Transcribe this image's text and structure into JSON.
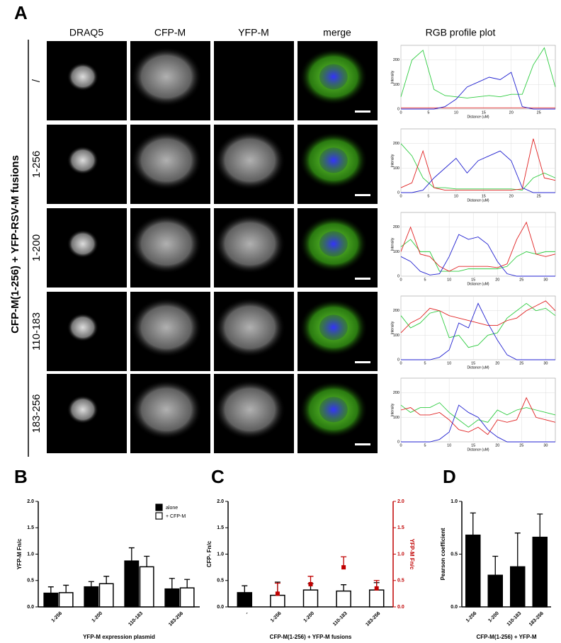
{
  "panel_a": {
    "label": "A",
    "side_label": "CFP-M(1-256) + YFP-RSV-M fusions",
    "columns": [
      "DRAQ5",
      "CFP-M",
      "YFP-M",
      "merge",
      "RGB profile plot"
    ],
    "rows": [
      "/",
      "1-256",
      "1-200",
      "110-183",
      "183-256"
    ]
  },
  "chart_data": [
    {
      "type": "line",
      "xlabel": "Distance (uM)",
      "ylabel": "Intensity",
      "xlim": [
        0,
        28
      ],
      "ylim": [
        0,
        260
      ],
      "xticks": [
        0,
        5,
        10,
        15,
        20,
        25
      ],
      "yticks": [
        0,
        100,
        200
      ],
      "x": [
        0,
        2,
        4,
        6,
        8,
        10,
        12,
        14,
        16,
        18,
        20,
        22,
        24,
        26,
        28
      ],
      "series": [
        {
          "color": "#2ecc40",
          "values": [
            50,
            200,
            240,
            80,
            55,
            50,
            45,
            50,
            55,
            50,
            60,
            60,
            180,
            250,
            90
          ]
        },
        {
          "color": "#e02020",
          "values": [
            5,
            5,
            5,
            5,
            5,
            5,
            5,
            5,
            5,
            5,
            5,
            5,
            5,
            5,
            5
          ]
        },
        {
          "color": "#2020d0",
          "values": [
            0,
            0,
            0,
            0,
            10,
            40,
            90,
            110,
            130,
            120,
            150,
            10,
            0,
            0,
            0
          ]
        }
      ]
    },
    {
      "type": "line",
      "xlabel": "Distance (uM)",
      "ylabel": "Intensity",
      "xlim": [
        0,
        28
      ],
      "ylim": [
        0,
        260
      ],
      "xticks": [
        0,
        5,
        10,
        15,
        20,
        25
      ],
      "yticks": [
        0,
        100,
        200
      ],
      "x": [
        0,
        2,
        4,
        6,
        8,
        10,
        12,
        14,
        16,
        18,
        20,
        22,
        24,
        26,
        28
      ],
      "series": [
        {
          "color": "#2ecc40",
          "values": [
            200,
            150,
            60,
            20,
            20,
            15,
            15,
            15,
            15,
            15,
            15,
            10,
            60,
            80,
            60
          ]
        },
        {
          "color": "#e02020",
          "values": [
            20,
            40,
            170,
            20,
            10,
            10,
            10,
            10,
            10,
            10,
            10,
            15,
            220,
            60,
            50
          ]
        },
        {
          "color": "#2020d0",
          "values": [
            0,
            0,
            10,
            60,
            100,
            140,
            80,
            130,
            150,
            170,
            130,
            20,
            0,
            0,
            0
          ]
        }
      ]
    },
    {
      "type": "line",
      "xlabel": "Distance (uM)",
      "ylabel": "Intensity",
      "xlim": [
        0,
        32
      ],
      "ylim": [
        0,
        260
      ],
      "xticks": [
        0,
        5,
        10,
        15,
        20,
        25,
        30
      ],
      "yticks": [
        0,
        100,
        200
      ],
      "x": [
        0,
        2,
        4,
        6,
        8,
        10,
        12,
        14,
        16,
        18,
        20,
        22,
        24,
        26,
        28,
        30,
        32
      ],
      "series": [
        {
          "color": "#2ecc40",
          "values": [
            120,
            150,
            100,
            100,
            20,
            20,
            20,
            30,
            30,
            30,
            30,
            40,
            80,
            100,
            90,
            100,
            100
          ]
        },
        {
          "color": "#e02020",
          "values": [
            100,
            200,
            90,
            80,
            40,
            20,
            40,
            40,
            40,
            40,
            35,
            50,
            150,
            220,
            90,
            80,
            90
          ]
        },
        {
          "color": "#2020d0",
          "values": [
            80,
            60,
            20,
            5,
            10,
            80,
            170,
            150,
            160,
            130,
            60,
            10,
            0,
            0,
            0,
            0,
            0
          ]
        }
      ]
    },
    {
      "type": "line",
      "xlabel": "Distance (uM)",
      "ylabel": "Intensity",
      "xlim": [
        0,
        32
      ],
      "ylim": [
        0,
        260
      ],
      "xticks": [
        0,
        5,
        10,
        15,
        20,
        25,
        30
      ],
      "yticks": [
        0,
        100,
        200
      ],
      "x": [
        0,
        2,
        4,
        6,
        8,
        10,
        12,
        14,
        16,
        18,
        20,
        22,
        24,
        26,
        28,
        30,
        32
      ],
      "series": [
        {
          "color": "#2ecc40",
          "values": [
            180,
            130,
            150,
            190,
            200,
            90,
            100,
            50,
            60,
            100,
            110,
            170,
            200,
            230,
            200,
            210,
            180
          ]
        },
        {
          "color": "#e02020",
          "values": [
            110,
            150,
            170,
            210,
            200,
            180,
            170,
            160,
            150,
            140,
            140,
            160,
            170,
            200,
            220,
            240,
            200
          ]
        },
        {
          "color": "#2020d0",
          "values": [
            0,
            0,
            0,
            0,
            10,
            40,
            150,
            130,
            230,
            150,
            80,
            20,
            0,
            0,
            0,
            0,
            0
          ]
        }
      ]
    },
    {
      "type": "line",
      "xlabel": "Distance (uM)",
      "ylabel": "Intensity",
      "xlim": [
        0,
        32
      ],
      "ylim": [
        0,
        260
      ],
      "xticks": [
        0,
        5,
        10,
        15,
        20,
        25,
        30
      ],
      "yticks": [
        0,
        100,
        200
      ],
      "x": [
        0,
        2,
        4,
        6,
        8,
        10,
        12,
        14,
        16,
        18,
        20,
        22,
        24,
        26,
        28,
        30,
        32
      ],
      "series": [
        {
          "color": "#2ecc40",
          "values": [
            150,
            120,
            140,
            140,
            160,
            120,
            90,
            60,
            90,
            80,
            130,
            110,
            130,
            140,
            130,
            120,
            110
          ]
        },
        {
          "color": "#e02020",
          "values": [
            130,
            140,
            110,
            110,
            120,
            90,
            50,
            40,
            60,
            30,
            90,
            80,
            90,
            180,
            100,
            90,
            80
          ]
        },
        {
          "color": "#2020d0",
          "values": [
            0,
            0,
            0,
            0,
            10,
            40,
            150,
            120,
            100,
            50,
            20,
            0,
            0,
            0,
            0,
            0,
            0
          ]
        }
      ]
    },
    {
      "type": "bar",
      "panel": "B",
      "ylabel": "YFP-M  Fn/c",
      "xlabel": "YFP-M expression plasmid",
      "legend": "upper right",
      "categories": [
        "1-256",
        "1-200",
        "110-183",
        "183-256"
      ],
      "ylim": [
        0,
        2
      ],
      "yticks": [
        {
          "value": 0,
          "label": "0.0"
        },
        {
          "value": 0.5,
          "label": "0.5"
        },
        {
          "value": 1,
          "label": "1.0"
        },
        {
          "value": 1.5,
          "label": "1.5"
        },
        {
          "value": 2,
          "label": "2.0"
        }
      ],
      "series": [
        {
          "name": "alone",
          "color": "#000000",
          "values": [
            0.26,
            0.38,
            0.87,
            0.34
          ],
          "errors": [
            0.12,
            0.1,
            0.25,
            0.2
          ]
        },
        {
          "name": "+ CFP-M",
          "color": "#ffffff",
          "values": [
            0.27,
            0.44,
            0.76,
            0.36
          ],
          "errors": [
            0.14,
            0.14,
            0.2,
            0.16
          ]
        }
      ]
    },
    {
      "type": "bar",
      "panel": "C",
      "ylabel": "CFP- Fn/c",
      "y2label": "YFP-M Fn/c",
      "xlabel": "CFP-M(1-256) + YFP-M fusions",
      "categories": [
        "-",
        "1-256",
        "1-200",
        "110-183",
        "183-256"
      ],
      "ylim": [
        0,
        2
      ],
      "y2lim": [
        0,
        2
      ],
      "yticks": [
        {
          "value": 0,
          "label": "0.0"
        },
        {
          "value": 0.5,
          "label": "0.5"
        },
        {
          "value": 1,
          "label": "1.0"
        },
        {
          "value": 1.5,
          "label": "1.5"
        },
        {
          "value": 2,
          "label": "2.0"
        }
      ],
      "y2ticks": [
        {
          "value": 0,
          "label": "0.0"
        },
        {
          "value": 0.5,
          "label": "0.5"
        },
        {
          "value": 1,
          "label": "1.0"
        },
        {
          "value": 1.5,
          "label": "1.5"
        },
        {
          "value": 2,
          "label": "2.0"
        }
      ],
      "y2color": "#c00000",
      "series": [
        {
          "colors": [
            "#000000",
            "#ffffff",
            "#ffffff",
            "#ffffff",
            "#ffffff"
          ],
          "values": [
            0.27,
            0.22,
            0.32,
            0.3,
            0.32
          ],
          "errors": [
            0.13,
            0.25,
            0.12,
            0.12,
            0.14
          ]
        },
        {
          "axis": "y2",
          "kind": "point",
          "color": "#c00000",
          "values": [
            null,
            0.25,
            0.43,
            0.75,
            0.35
          ],
          "errors": [
            null,
            0.2,
            0.15,
            0.2,
            0.15
          ]
        }
      ]
    },
    {
      "type": "bar",
      "panel": "D",
      "ylabel": "Pearson coefficient",
      "xlabel": "CFP-M(1-256) + YFP-M",
      "categories": [
        "1-256",
        "1-200",
        "110-183",
        "183-256"
      ],
      "ylim": [
        0,
        1
      ],
      "yticks": [
        {
          "value": 0,
          "label": "0.0"
        },
        {
          "value": 0.5,
          "label": "0.5"
        },
        {
          "value": 1,
          "label": "1.0"
        }
      ],
      "series": [
        {
          "color": "#000000",
          "values": [
            0.68,
            0.3,
            0.38,
            0.66
          ],
          "errors": [
            0.21,
            0.18,
            0.32,
            0.22
          ]
        }
      ]
    }
  ]
}
